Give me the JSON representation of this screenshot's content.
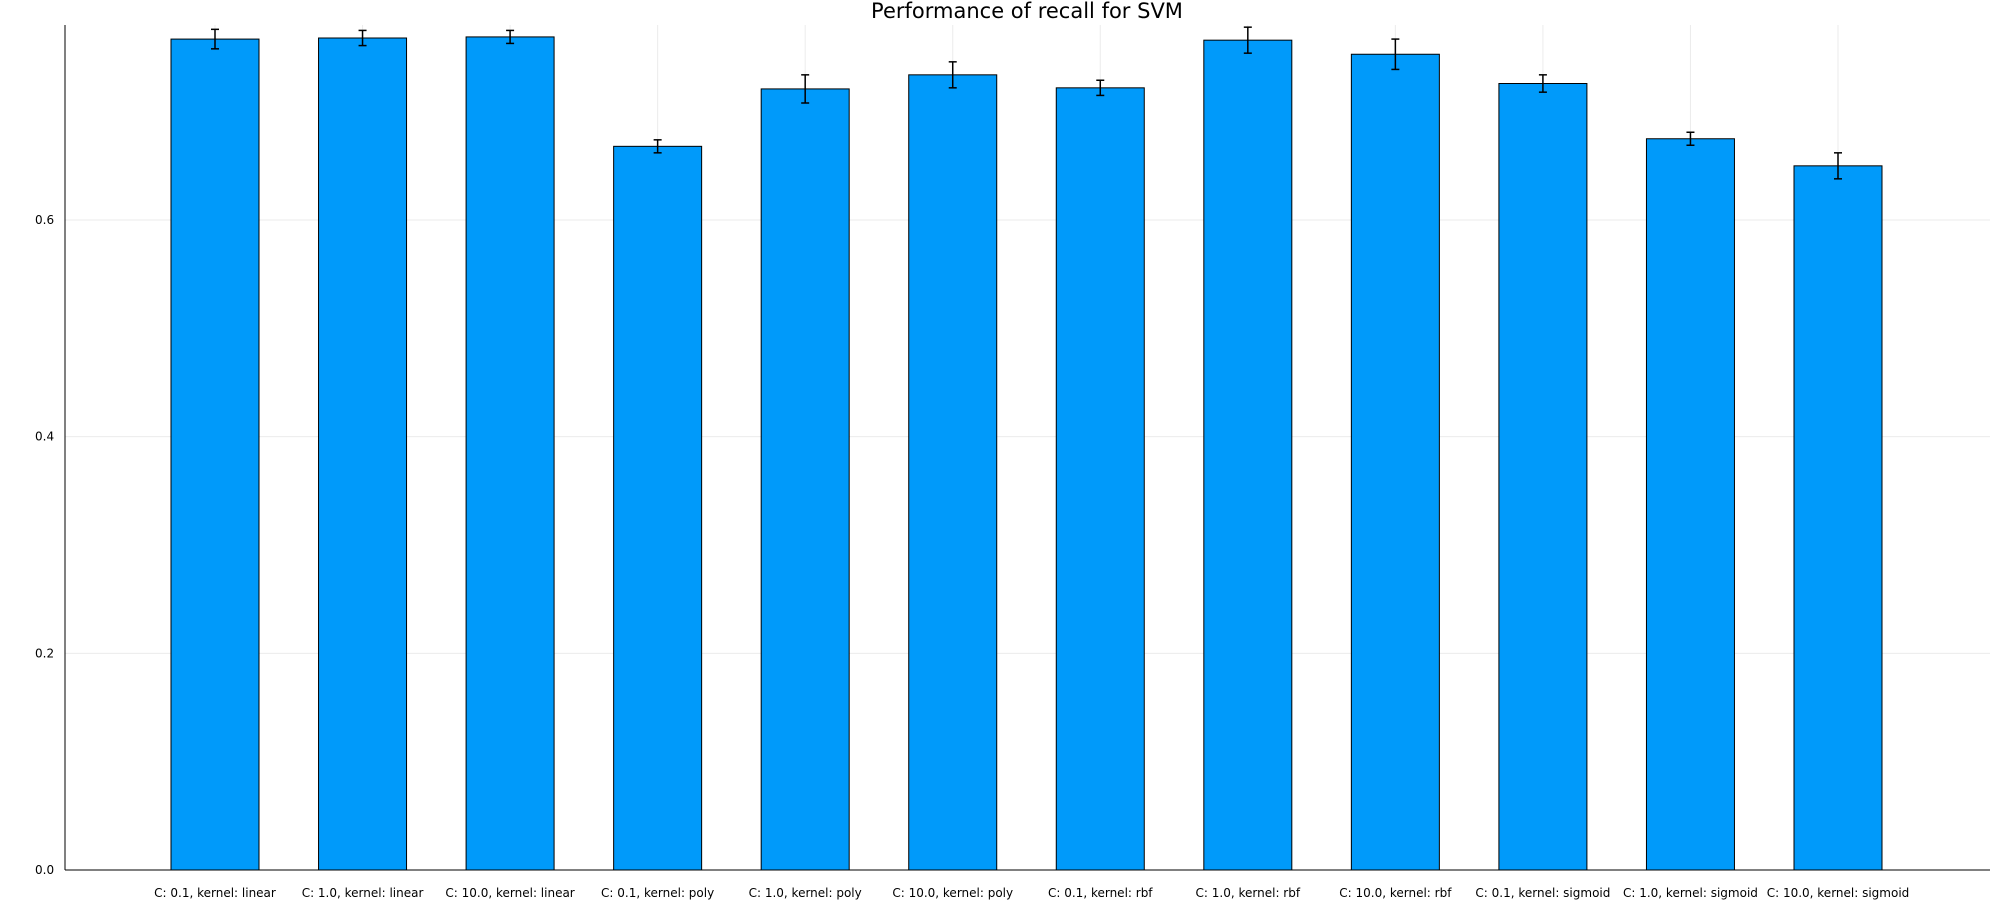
{
  "chart_data": {
    "type": "bar",
    "title": "Performance of recall for SVM",
    "xlabel": "",
    "ylabel": "",
    "ylim": [
      0.0,
      0.78
    ],
    "yticks": [
      0.0,
      0.2,
      0.4,
      0.6
    ],
    "ytick_labels": [
      "0.0",
      "0.2",
      "0.4",
      "0.6"
    ],
    "grid": true,
    "legend": "none",
    "bar_color": "#009AFA",
    "categories": [
      "C: 0.1, kernel: linear",
      "C: 1.0, kernel: linear",
      "C: 10.0, kernel: linear",
      "C: 0.1, kernel: poly",
      "C: 1.0, kernel: poly",
      "C: 10.0, kernel: poly",
      "C: 0.1, kernel: rbf",
      "C: 1.0, kernel: rbf",
      "C: 10.0, kernel: rbf",
      "C: 0.1, kernel: sigmoid",
      "C: 1.0, kernel: sigmoid",
      "C: 10.0, kernel: sigmoid"
    ],
    "values": [
      0.767,
      0.768,
      0.769,
      0.668,
      0.721,
      0.734,
      0.722,
      0.766,
      0.753,
      0.726,
      0.675,
      0.65
    ],
    "errors": [
      0.009,
      0.007,
      0.006,
      0.006,
      0.013,
      0.012,
      0.007,
      0.012,
      0.014,
      0.008,
      0.006,
      0.012
    ]
  }
}
